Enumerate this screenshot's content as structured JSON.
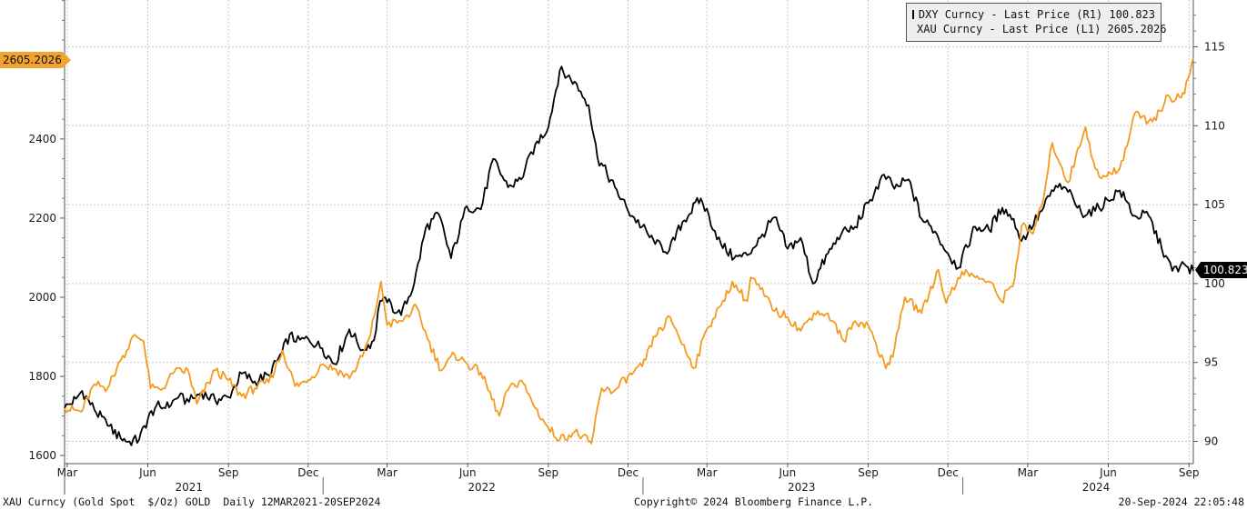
{
  "chart_data": {
    "type": "line",
    "left_axis": {
      "label": "",
      "min": 1600,
      "max": 2800,
      "ticks": [
        1600,
        1800,
        2000,
        2200,
        2400
      ]
    },
    "right_axis": {
      "label": "",
      "min": 89.5,
      "max": 118,
      "ticks": [
        90,
        95,
        100,
        105,
        110,
        115
      ]
    },
    "x_axis": {
      "start": "2021-03-12",
      "end": "2024-09-20",
      "month_ticks": [
        {
          "label": "Mar",
          "date": "2021-03-15"
        },
        {
          "label": "Jun",
          "date": "2021-06-15"
        },
        {
          "label": "Sep",
          "date": "2021-09-15"
        },
        {
          "label": "Dec",
          "date": "2021-12-15"
        },
        {
          "label": "Mar",
          "date": "2022-03-15"
        },
        {
          "label": "Jun",
          "date": "2022-06-15"
        },
        {
          "label": "Sep",
          "date": "2022-09-15"
        },
        {
          "label": "Dec",
          "date": "2022-12-15"
        },
        {
          "label": "Mar",
          "date": "2023-03-15"
        },
        {
          "label": "Jun",
          "date": "2023-06-15"
        },
        {
          "label": "Sep",
          "date": "2023-09-15"
        },
        {
          "label": "Dec",
          "date": "2023-12-15"
        },
        {
          "label": "Mar",
          "date": "2024-03-15"
        },
        {
          "label": "Jun",
          "date": "2024-06-15"
        },
        {
          "label": "Sep",
          "date": "2024-09-15"
        }
      ],
      "year_labels": [
        {
          "label": "2021",
          "date": "2021-08-01"
        },
        {
          "label": "2022",
          "date": "2022-07-01"
        },
        {
          "label": "2023",
          "date": "2023-07-01"
        },
        {
          "label": "2024",
          "date": "2024-06-01"
        }
      ],
      "year_dividers": [
        "2022-01-01",
        "2023-01-01",
        "2024-01-01"
      ]
    },
    "grid": true,
    "legend_position": "top-right",
    "series": [
      {
        "name": "DXY Curncy - Last Price (R1)",
        "legend_value": "100.823",
        "axis": "right",
        "color": "#000000",
        "x": [
          "2021-03-12",
          "2021-03-25",
          "2021-04-01",
          "2021-04-15",
          "2021-04-30",
          "2021-05-15",
          "2021-05-25",
          "2021-06-05",
          "2021-06-15",
          "2021-06-25",
          "2021-07-05",
          "2021-07-20",
          "2021-08-01",
          "2021-08-15",
          "2021-08-31",
          "2021-09-15",
          "2021-09-30",
          "2021-10-15",
          "2021-10-31",
          "2021-11-15",
          "2021-11-24",
          "2021-12-01",
          "2021-12-15",
          "2021-12-31",
          "2022-01-14",
          "2022-01-31",
          "2022-02-15",
          "2022-02-28",
          "2022-03-07",
          "2022-03-15",
          "2022-03-31",
          "2022-04-15",
          "2022-04-28",
          "2022-05-13",
          "2022-05-27",
          "2022-06-14",
          "2022-06-30",
          "2022-07-14",
          "2022-07-31",
          "2022-08-15",
          "2022-08-31",
          "2022-09-15",
          "2022-09-28",
          "2022-10-15",
          "2022-10-31",
          "2022-11-10",
          "2022-11-30",
          "2022-12-15",
          "2022-12-31",
          "2023-01-15",
          "2023-01-31",
          "2023-02-15",
          "2023-03-08",
          "2023-03-31",
          "2023-04-15",
          "2023-04-30",
          "2023-05-15",
          "2023-05-31",
          "2023-06-15",
          "2023-06-30",
          "2023-07-14",
          "2023-07-31",
          "2023-08-15",
          "2023-08-31",
          "2023-09-15",
          "2023-10-03",
          "2023-10-15",
          "2023-10-31",
          "2023-11-15",
          "2023-11-30",
          "2023-12-15",
          "2023-12-27",
          "2024-01-15",
          "2024-01-31",
          "2024-02-15",
          "2024-02-28",
          "2024-03-08",
          "2024-03-31",
          "2024-04-16",
          "2024-04-30",
          "2024-05-15",
          "2024-05-31",
          "2024-06-14",
          "2024-06-28",
          "2024-07-15",
          "2024-07-31",
          "2024-08-15",
          "2024-08-27",
          "2024-09-05",
          "2024-09-12",
          "2024-09-20"
        ],
        "values": [
          92.1,
          92.7,
          93.2,
          92.0,
          91.0,
          90.2,
          90.0,
          90.1,
          91.4,
          92.3,
          92.1,
          92.8,
          92.5,
          93.1,
          92.6,
          92.8,
          94.3,
          93.8,
          94.2,
          95.6,
          96.8,
          96.3,
          96.5,
          95.9,
          94.9,
          97.1,
          95.8,
          96.4,
          98.9,
          98.8,
          98.0,
          100.0,
          103.5,
          104.4,
          101.6,
          104.9,
          104.7,
          107.9,
          106.1,
          106.6,
          108.8,
          109.9,
          113.5,
          112.8,
          111.3,
          108.0,
          106.1,
          104.6,
          103.6,
          102.5,
          102.1,
          103.9,
          105.4,
          102.5,
          101.6,
          101.8,
          102.9,
          104.2,
          102.2,
          102.9,
          100.0,
          101.9,
          103.1,
          103.6,
          105.1,
          106.9,
          106.0,
          106.6,
          104.1,
          103.3,
          101.9,
          101.0,
          103.6,
          103.4,
          104.8,
          104.1,
          102.7,
          104.6,
          106.2,
          105.8,
          104.5,
          104.6,
          105.3,
          105.9,
          104.3,
          104.3,
          102.2,
          100.8,
          101.1,
          101.1,
          100.8
        ]
      },
      {
        "name": "XAU Curncy - Last Price (L1)",
        "legend_value": "2605.2026",
        "axis": "left",
        "color": "#f59a1d",
        "x": [
          "2021-03-12",
          "2021-03-31",
          "2021-04-15",
          "2021-04-30",
          "2021-05-15",
          "2021-05-31",
          "2021-06-10",
          "2021-06-18",
          "2021-06-30",
          "2021-07-15",
          "2021-07-31",
          "2021-08-10",
          "2021-08-31",
          "2021-09-15",
          "2021-09-30",
          "2021-10-15",
          "2021-10-31",
          "2021-11-16",
          "2021-11-30",
          "2021-12-15",
          "2021-12-31",
          "2022-01-14",
          "2022-01-31",
          "2022-02-15",
          "2022-02-24",
          "2022-03-08",
          "2022-03-15",
          "2022-03-31",
          "2022-04-18",
          "2022-04-30",
          "2022-05-16",
          "2022-05-31",
          "2022-06-15",
          "2022-06-30",
          "2022-07-21",
          "2022-07-31",
          "2022-08-15",
          "2022-08-31",
          "2022-09-15",
          "2022-09-28",
          "2022-10-15",
          "2022-10-31",
          "2022-11-03",
          "2022-11-15",
          "2022-11-30",
          "2022-12-15",
          "2022-12-31",
          "2023-01-15",
          "2023-02-01",
          "2023-02-28",
          "2023-03-15",
          "2023-03-31",
          "2023-04-13",
          "2023-04-30",
          "2023-05-04",
          "2023-05-15",
          "2023-05-31",
          "2023-06-15",
          "2023-06-30",
          "2023-07-15",
          "2023-07-31",
          "2023-08-18",
          "2023-08-31",
          "2023-09-15",
          "2023-10-05",
          "2023-10-15",
          "2023-10-27",
          "2023-11-15",
          "2023-12-04",
          "2023-12-13",
          "2023-12-31",
          "2024-01-15",
          "2024-01-31",
          "2024-02-14",
          "2024-02-29",
          "2024-03-08",
          "2024-03-21",
          "2024-03-31",
          "2024-04-12",
          "2024-04-30",
          "2024-05-20",
          "2024-05-31",
          "2024-06-07",
          "2024-06-28",
          "2024-07-17",
          "2024-07-31",
          "2024-08-15",
          "2024-08-20",
          "2024-08-31",
          "2024-09-10",
          "2024-09-20"
        ],
        "values": [
          1720,
          1710,
          1780,
          1770,
          1840,
          1905,
          1890,
          1770,
          1765,
          1810,
          1815,
          1730,
          1815,
          1790,
          1750,
          1770,
          1785,
          1865,
          1775,
          1790,
          1830,
          1820,
          1795,
          1850,
          1905,
          2040,
          1930,
          1940,
          1975,
          1895,
          1815,
          1855,
          1830,
          1810,
          1700,
          1765,
          1790,
          1720,
          1670,
          1640,
          1660,
          1635,
          1630,
          1770,
          1765,
          1800,
          1825,
          1900,
          1950,
          1820,
          1920,
          1980,
          2040,
          1990,
          2050,
          2020,
          1965,
          1950,
          1915,
          1960,
          1960,
          1890,
          1940,
          1930,
          1820,
          1870,
          2000,
          1960,
          2070,
          1985,
          2065,
          2050,
          2040,
          1990,
          2045,
          2180,
          2160,
          2230,
          2390,
          2290,
          2430,
          2325,
          2300,
          2325,
          2470,
          2445,
          2470,
          2510,
          2500,
          2515,
          2605
        ]
      }
    ]
  },
  "labels": {
    "legend_dxy": "DXY Curncy - Last Price (R1) 100.823",
    "legend_xau": "XAU Curncy - Last Price (L1) 2605.2026",
    "badge_left": "2605.2026",
    "badge_right": "100.823",
    "footer_left": "XAU Curncy (Gold Spot  $/Oz) GOLD  Daily 12MAR2021-20SEP2024",
    "footer_center": "Copyright© 2024 Bloomberg Finance L.P.",
    "footer_right": "20-Sep-2024 22:05:48"
  }
}
